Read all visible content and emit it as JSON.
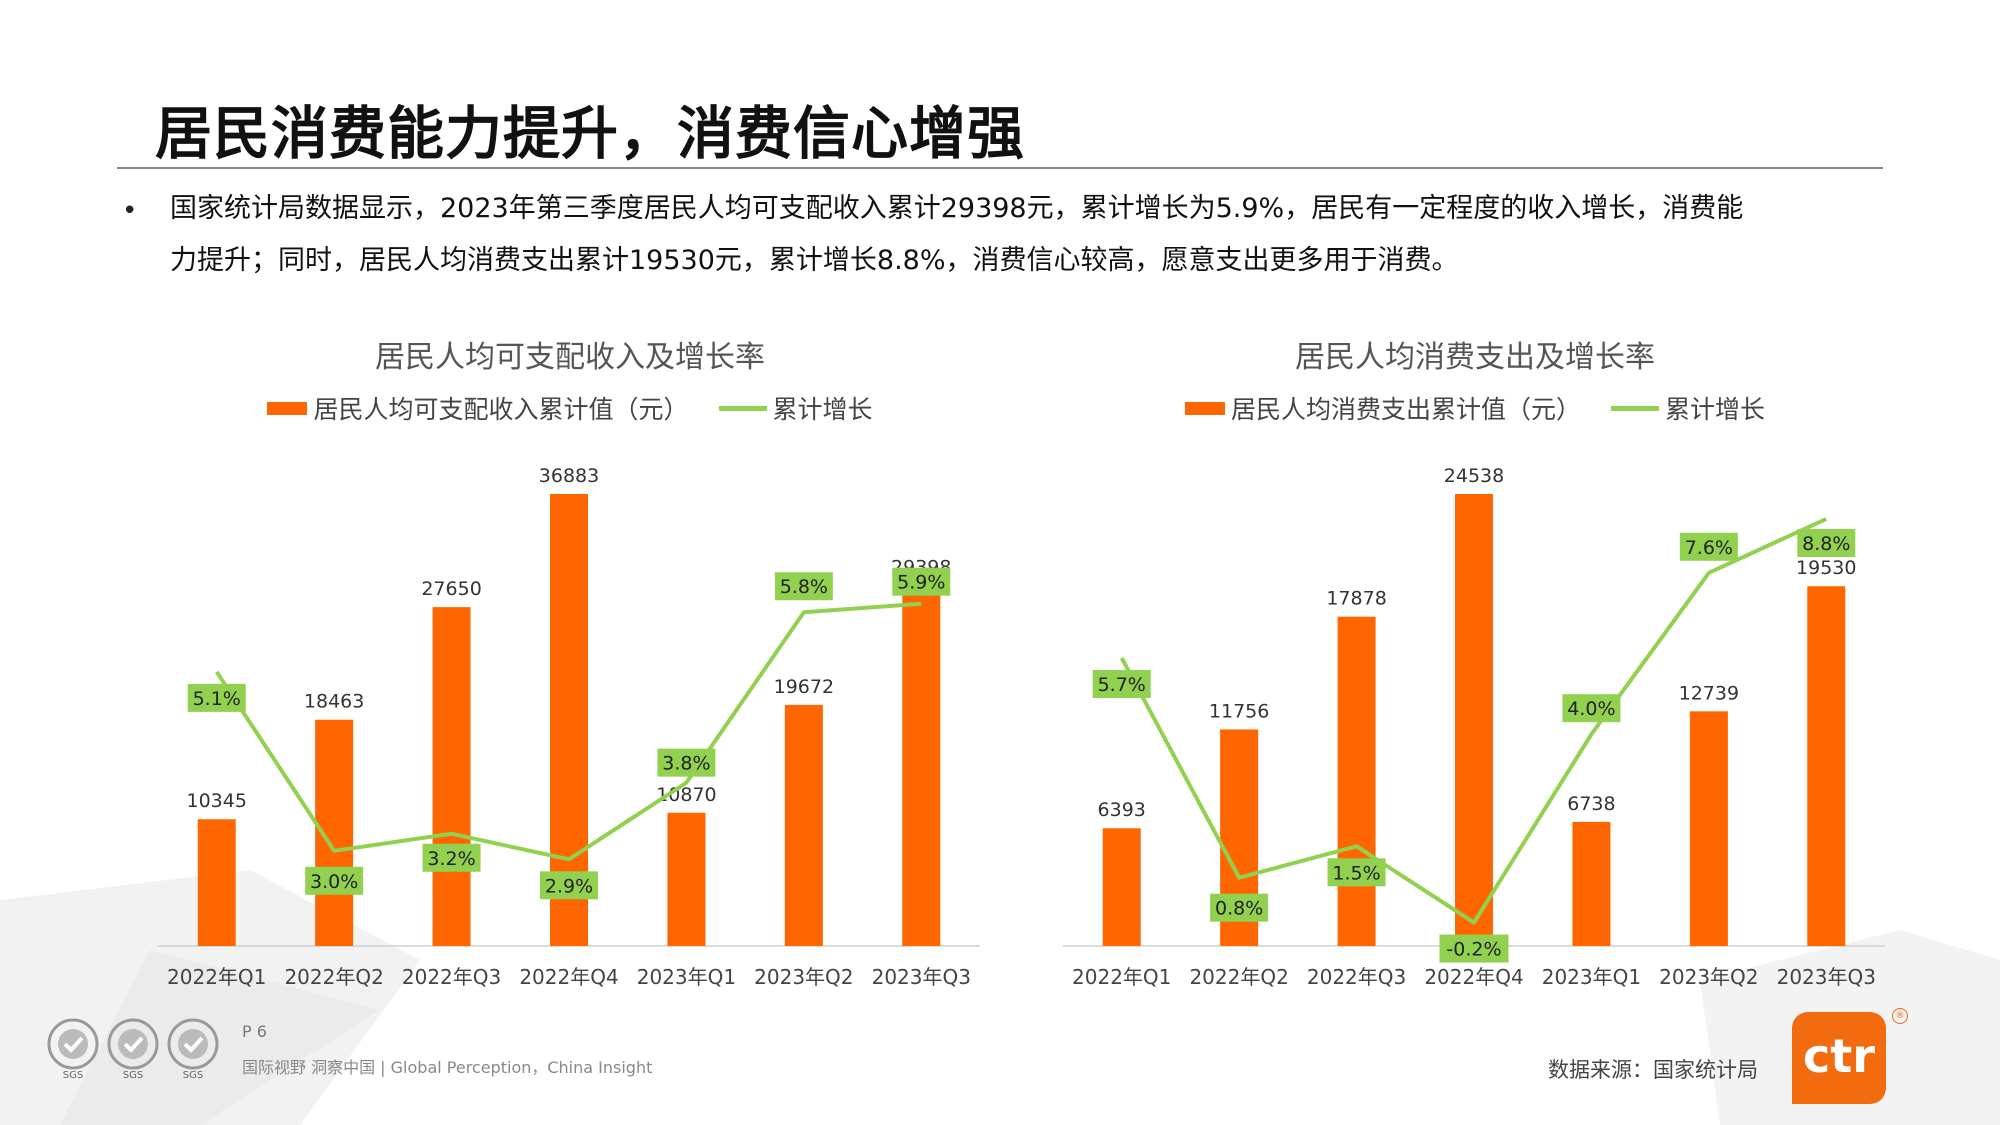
{
  "title": "居民消费能力提升，消费信心增强",
  "bullet": {
    "marker": "•",
    "line1": "国家统计局数据显示，2023年第三季度居民人均可支配收入累计29398元，累计增长为5.9%，居民有一定程度的收入增长，消费能",
    "line2": "力提升；同时，居民人均消费支出累计19530元，累计增长8.8%，消费信心较高，愿意支出更多用于消费。"
  },
  "colors": {
    "bar": "#ff6600",
    "line": "#92d050",
    "label_bg": "#92d050"
  },
  "chart_data": [
    {
      "type": "bar",
      "title": "居民人均可支配收入及增长率",
      "categories": [
        "2022年Q1",
        "2022年Q2",
        "2022年Q3",
        "2022年Q4",
        "2023年Q1",
        "2023年Q2",
        "2023年Q3"
      ],
      "series": [
        {
          "name": "居民人均可支配收入累计值（元）",
          "type": "bar",
          "values": [
            10345,
            18463,
            27650,
            36883,
            10870,
            19672,
            29398
          ]
        },
        {
          "name": "累计增长",
          "type": "line",
          "values": [
            5.1,
            3.0,
            3.2,
            2.9,
            3.8,
            5.8,
            5.9
          ],
          "labels": [
            "5.1%",
            "3.0%",
            "3.2%",
            "2.9%",
            "3.8%",
            "5.8%",
            "5.9%"
          ]
        }
      ],
      "bar_labels": [
        "10345",
        "18463",
        "27650",
        "36883",
        "10870",
        "19672",
        "29398"
      ],
      "legend": "top-center"
    },
    {
      "type": "bar",
      "title": "居民人均消费支出及增长率",
      "categories": [
        "2022年Q1",
        "2022年Q2",
        "2022年Q3",
        "2022年Q4",
        "2023年Q1",
        "2023年Q2",
        "2023年Q3"
      ],
      "series": [
        {
          "name": "居民人均消费支出累计值（元）",
          "type": "bar",
          "values": [
            6393,
            11756,
            17878,
            24538,
            6738,
            12739,
            19530
          ]
        },
        {
          "name": "累计增长",
          "type": "line",
          "values": [
            5.7,
            0.8,
            1.5,
            -0.2,
            4.0,
            7.6,
            8.8
          ],
          "labels": [
            "5.7%",
            "0.8%",
            "1.5%",
            "-0.2%",
            "4.0%",
            "7.6%",
            "8.8%"
          ]
        }
      ],
      "bar_labels": [
        "6393",
        "11756",
        "17878",
        "24538",
        "6738",
        "12739",
        "19530"
      ],
      "legend": "top-center"
    }
  ],
  "footer": {
    "page": "P 6",
    "tagline": "国际视野 洞察中国 | Global Perception，China Insight",
    "source": "数据来源：国家统计局",
    "logo_text": "ctr",
    "cert_text": "SGS",
    "reg_mark": "®"
  }
}
